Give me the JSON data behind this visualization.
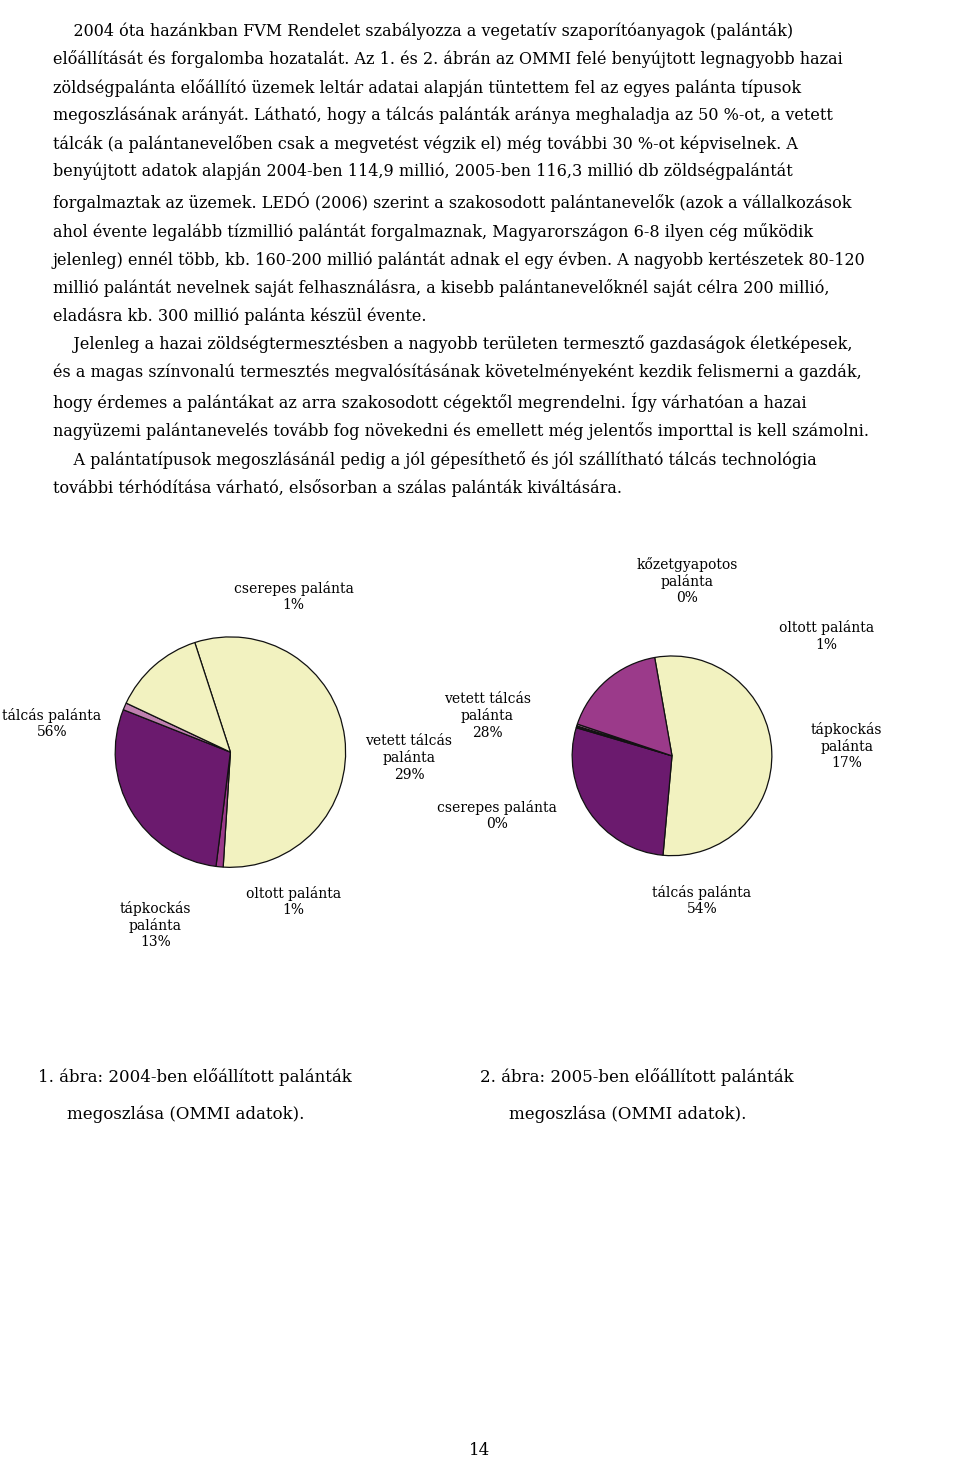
{
  "chart1": {
    "slices": [
      56,
      1,
      29,
      1,
      13
    ],
    "colors": [
      "#F2F2C0",
      "#9B3A8A",
      "#6B1A6E",
      "#C080B0",
      "#F2F2C0"
    ],
    "startangle": 108,
    "counterclock": false
  },
  "chart2": {
    "slices": [
      54,
      28,
      0.3,
      0.3,
      17
    ],
    "colors": [
      "#F2F2C0",
      "#6B1A6E",
      "#1A1A1A",
      "#C080B0",
      "#9B3A8A"
    ],
    "startangle": 100,
    "counterclock": false
  },
  "background": "#ffffff",
  "text_color": "#000000",
  "label_fontsize": 10,
  "caption_fontsize": 12,
  "page_number": "14",
  "caption1_line1": "1. ábra: 2004-ben előállított palánták",
  "caption1_line2": "megoszlása (OMMI adatok).",
  "caption2_line1": "2. ábra: 2005-ben előállított palánták",
  "caption2_line2": "megoszlása (OMMI adatok)."
}
